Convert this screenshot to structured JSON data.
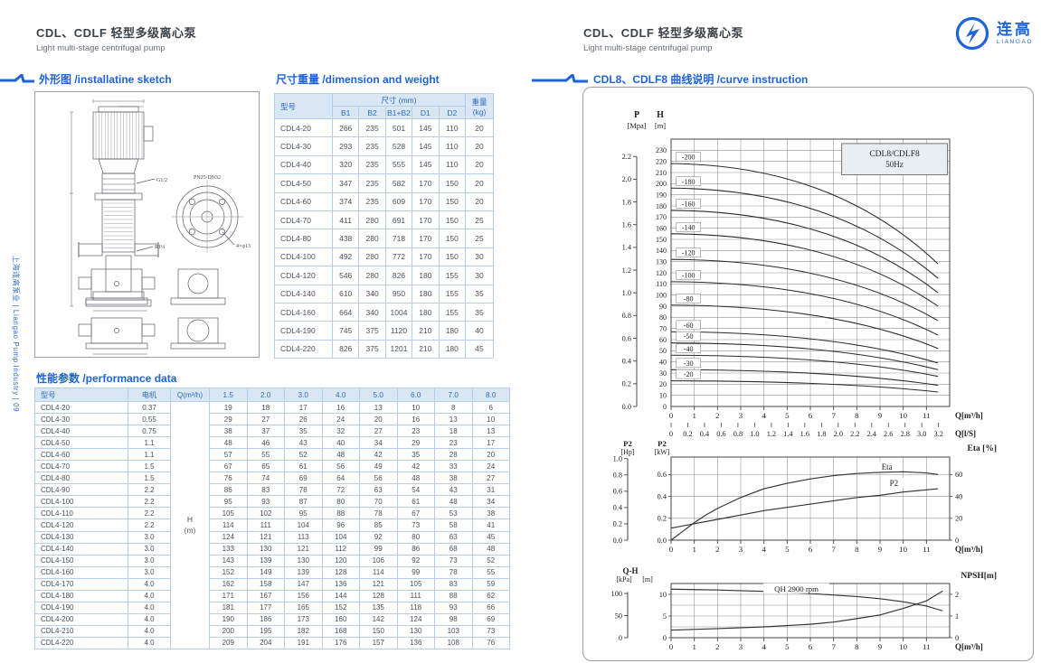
{
  "page_left": {
    "title_cn": "CDL、CDLF 轻型多级离心泵",
    "title_en": "Light multi-stage centrifugal pump",
    "section_sketch": "外形图 /installatine sketch",
    "section_dimension": "尺寸重量 /dimension and weight",
    "section_performance": "性能参数 /performance data",
    "sidebar_text": "上海连高泵业 | Liangao Pump Industry | 09",
    "sketch_labels": {
      "thread": "G1/2",
      "port": "R1¼",
      "flange": "PN25/DN32",
      "bolts": "4×φ13"
    },
    "dimension_table": {
      "col_model": "型号",
      "col_size": "尺寸 (mm)",
      "col_weight": "重量",
      "col_weight_unit": "(kg)",
      "size_cols": [
        "B1",
        "B2",
        "B1+B2",
        "D1",
        "D2"
      ],
      "rows": [
        [
          "CDL4-20",
          "266",
          "235",
          "501",
          "145",
          "110",
          "20"
        ],
        [
          "CDL4-30",
          "293",
          "235",
          "528",
          "145",
          "110",
          "20"
        ],
        [
          "CDL4-40",
          "320",
          "235",
          "555",
          "145",
          "110",
          "20"
        ],
        [
          "CDL4-50",
          "347",
          "235",
          "582",
          "170",
          "150",
          "20"
        ],
        [
          "CDL4-60",
          "374",
          "235",
          "609",
          "170",
          "150",
          "20"
        ],
        [
          "CDL4-70",
          "411",
          "280",
          "691",
          "170",
          "150",
          "25"
        ],
        [
          "CDL4-80",
          "438",
          "280",
          "718",
          "170",
          "150",
          "25"
        ],
        [
          "CDL4-100",
          "492",
          "280",
          "772",
          "170",
          "150",
          "30"
        ],
        [
          "CDL4-120",
          "546",
          "280",
          "826",
          "180",
          "155",
          "30"
        ],
        [
          "CDL4-140",
          "610",
          "340",
          "950",
          "180",
          "155",
          "35"
        ],
        [
          "CDL4-160",
          "664",
          "340",
          "1004",
          "180",
          "155",
          "35"
        ],
        [
          "CDL4-190",
          "745",
          "375",
          "1120",
          "210",
          "180",
          "40"
        ],
        [
          "CDL4-220",
          "826",
          "375",
          "1201",
          "210",
          "180",
          "45"
        ]
      ]
    },
    "performance_table": {
      "headers": [
        "型号",
        "电机",
        "Q(m³/h)",
        "1.5",
        "2.0",
        "3.0",
        "4.0",
        "5.0",
        "6.0",
        "7.0",
        "8.0"
      ],
      "h_col": {
        "top": "H",
        "bottom": "(m)"
      },
      "rows": [
        [
          "CDL4-20",
          "0.37",
          "19",
          "18",
          "17",
          "16",
          "13",
          "10",
          "8",
          "6"
        ],
        [
          "CDL4-30",
          "0.55",
          "29",
          "27",
          "26",
          "24",
          "20",
          "16",
          "13",
          "10"
        ],
        [
          "CDL4-40",
          "0.75",
          "38",
          "37",
          "35",
          "32",
          "27",
          "23",
          "18",
          "13"
        ],
        [
          "CDL4-50",
          "1.1",
          "48",
          "46",
          "43",
          "40",
          "34",
          "29",
          "23",
          "17"
        ],
        [
          "CDL4-60",
          "1.1",
          "57",
          "55",
          "52",
          "48",
          "42",
          "35",
          "28",
          "20"
        ],
        [
          "CDL4-70",
          "1.5",
          "67",
          "65",
          "61",
          "56",
          "49",
          "42",
          "33",
          "24"
        ],
        [
          "CDL4-80",
          "1.5",
          "76",
          "74",
          "69",
          "64",
          "56",
          "48",
          "38",
          "27"
        ],
        [
          "CDL4-90",
          "2.2",
          "86",
          "83",
          "78",
          "72",
          "63",
          "54",
          "43",
          "31"
        ],
        [
          "CDL4-100",
          "2.2",
          "95",
          "93",
          "87",
          "80",
          "70",
          "61",
          "48",
          "34"
        ],
        [
          "CDL4-110",
          "2.2",
          "105",
          "102",
          "95",
          "88",
          "78",
          "67",
          "53",
          "38"
        ],
        [
          "CDL4-120",
          "2.2",
          "114",
          "111",
          "104",
          "96",
          "85",
          "73",
          "58",
          "41"
        ],
        [
          "CDL4-130",
          "3.0",
          "124",
          "121",
          "113",
          "104",
          "92",
          "80",
          "63",
          "45"
        ],
        [
          "CDL4-140",
          "3.0",
          "133",
          "130",
          "121",
          "112",
          "99",
          "86",
          "68",
          "48"
        ],
        [
          "CDL4-150",
          "3.0",
          "143",
          "139",
          "130",
          "120",
          "106",
          "92",
          "73",
          "52"
        ],
        [
          "CDL4-160",
          "3.0",
          "152",
          "149",
          "139",
          "128",
          "114",
          "99",
          "78",
          "55"
        ],
        [
          "CDL4-170",
          "4.0",
          "162",
          "158",
          "147",
          "136",
          "121",
          "105",
          "83",
          "59"
        ],
        [
          "CDL4-180",
          "4.0",
          "171",
          "167",
          "156",
          "144",
          "128",
          "111",
          "88",
          "62"
        ],
        [
          "CDL4-190",
          "4.0",
          "181",
          "177",
          "165",
          "152",
          "135",
          "118",
          "93",
          "66"
        ],
        [
          "CDL4-200",
          "4.0",
          "190",
          "186",
          "173",
          "160",
          "142",
          "124",
          "98",
          "69"
        ],
        [
          "CDL4-210",
          "4.0",
          "200",
          "195",
          "182",
          "168",
          "150",
          "130",
          "103",
          "73"
        ],
        [
          "CDL4-220",
          "4.0",
          "209",
          "204",
          "191",
          "176",
          "157",
          "136",
          "108",
          "76"
        ]
      ]
    }
  },
  "page_right": {
    "title_cn": "CDL、CDLF 轻型多级离心泵",
    "title_en": "Light multi-stage centrifugal pump",
    "logo_cn": "连高",
    "logo_en": "LIANGAO",
    "section_curve": "CDL8、CDLF8 曲线说明 /curve instruction"
  },
  "colors": {
    "accent_blue": "#1d63d9",
    "table_header_bg": "#d9e6f4",
    "table_header_text": "#2e6cc6",
    "table_border": "#b5cfe9",
    "chart_line": "#2a2a2a"
  },
  "chart_data": [
    {
      "type": "line",
      "name": "head-flow-curves",
      "title_line1": "CDL8/CDLF8",
      "title_line2": "50Hz",
      "y_pressure": {
        "label": "P",
        "unit": "[Mpa]",
        "ticks": [
          2.2,
          2.0,
          1.8,
          1.6,
          1.4,
          1.2,
          1.0,
          0.8,
          0.6,
          0.4,
          0.2,
          0.0
        ],
        "m_per_mpa": 102
      },
      "y_head": {
        "label": "H",
        "unit": "[m]",
        "min": 0,
        "max": 240,
        "tick_min": 0,
        "tick_max": 230,
        "tick_step": 10
      },
      "x": {
        "min": 0,
        "max": 12,
        "ticks": [
          0,
          1,
          2,
          3,
          4,
          5,
          6,
          7,
          8,
          9,
          10,
          11
        ],
        "label": "Q[m³/h]"
      },
      "x_ls": {
        "ticks": [
          0,
          0.2,
          0.4,
          0.6,
          0.8,
          1.0,
          1.2,
          1.4,
          1.6,
          1.8,
          2.0,
          2.2,
          2.4,
          2.6,
          2.8,
          3.0,
          3.2
        ],
        "label": "Q[l/S]",
        "m3h_per_ls": 3.6
      },
      "q_end": 11.5,
      "curves": [
        {
          "label": "-200",
          "h_start": 218,
          "h_end": 128
        },
        {
          "label": "-180",
          "h_start": 196,
          "h_end": 115
        },
        {
          "label": "-160",
          "h_start": 176,
          "h_end": 102
        },
        {
          "label": "-140",
          "h_start": 155,
          "h_end": 90
        },
        {
          "label": "-120",
          "h_start": 132,
          "h_end": 77
        },
        {
          "label": "-100",
          "h_start": 112,
          "h_end": 64
        },
        {
          "label": "-80",
          "h_start": 91,
          "h_end": 52
        },
        {
          "label": "-60",
          "h_start": 67,
          "h_end": 39
        },
        {
          "label": "-50",
          "h_start": 57,
          "h_end": 33
        },
        {
          "label": "-40",
          "h_start": 46,
          "h_end": 27
        },
        {
          "label": "-30",
          "h_start": 33,
          "h_end": 19
        },
        {
          "label": "-20",
          "h_start": 23,
          "h_end": 13
        }
      ]
    },
    {
      "type": "line",
      "name": "power-efficiency",
      "y_hp": {
        "label": "P2",
        "unit": "[Hp]",
        "ticks": [
          1.0,
          0.8,
          0.6,
          0.4,
          0.2,
          0.0
        ],
        "kw_per_hp": 0.7457
      },
      "y_kw": {
        "label": "P2",
        "unit": "[kW]",
        "ticks": [
          0.6,
          0.4,
          0.2,
          0.0
        ],
        "max": 0.76
      },
      "y_eta": {
        "label": "Eta [%]",
        "ticks": [
          60,
          40,
          20,
          0
        ],
        "max": 76
      },
      "x": {
        "min": 0,
        "max": 12,
        "ticks": [
          0,
          1,
          2,
          3,
          4,
          5,
          6,
          7,
          8,
          9,
          10,
          11
        ],
        "label": "Q[m³/h]"
      },
      "series": [
        {
          "name": "Eta",
          "axis": "eta",
          "label_at": [
            9.3,
            67
          ],
          "points": [
            [
              0,
              0
            ],
            [
              0.5,
              8
            ],
            [
              1,
              16
            ],
            [
              1.5,
              23
            ],
            [
              2,
              29
            ],
            [
              3,
              39
            ],
            [
              4,
              47
            ],
            [
              5,
              52
            ],
            [
              6,
              56
            ],
            [
              7,
              59
            ],
            [
              8,
              61
            ],
            [
              9,
              62
            ],
            [
              10,
              62.5
            ],
            [
              11,
              61.5
            ],
            [
              11.5,
              60
            ]
          ]
        },
        {
          "name": "P2",
          "axis": "kw",
          "label_at": [
            9.6,
            0.52
          ],
          "points": [
            [
              0,
              0.11
            ],
            [
              1,
              0.15
            ],
            [
              2,
              0.19
            ],
            [
              3,
              0.23
            ],
            [
              4,
              0.27
            ],
            [
              5,
              0.3
            ],
            [
              6,
              0.33
            ],
            [
              7,
              0.36
            ],
            [
              8,
              0.39
            ],
            [
              9,
              0.41
            ],
            [
              10,
              0.44
            ],
            [
              11,
              0.46
            ],
            [
              11.5,
              0.47
            ]
          ]
        }
      ]
    },
    {
      "type": "line",
      "name": "qh-npsh",
      "y_qh": {
        "label": "Q-H",
        "unit_kpa": "[kPa]",
        "unit_m": "[m]",
        "kpa_ticks": [
          100,
          50,
          0
        ],
        "m_ticks": [
          10,
          5,
          0
        ],
        "m_max": 12.5,
        "kpa_per_m": 9.8
      },
      "y_npsh": {
        "label": "NPSH[m]",
        "ticks": [
          2,
          1,
          0
        ],
        "max": 2.5
      },
      "x": {
        "min": 0,
        "max": 12,
        "ticks": [
          0,
          1,
          2,
          3,
          4,
          5,
          6,
          7,
          8,
          9,
          10,
          11
        ],
        "label": "Q[m³/h]"
      },
      "series": [
        {
          "name": "QH  2900 rpm",
          "axis": "m",
          "label_at": [
            5.4,
            11.3
          ],
          "points": [
            [
              0,
              11.2
            ],
            [
              2,
              11.0
            ],
            [
              4,
              10.7
            ],
            [
              6,
              10.2
            ],
            [
              8,
              9.5
            ],
            [
              9,
              9.0
            ],
            [
              10,
              8.3
            ],
            [
              11,
              7.3
            ],
            [
              11.7,
              6.2
            ]
          ]
        },
        {
          "name": "NPSH",
          "axis": "npsh",
          "label_at": [
            4.6,
            4.2
          ],
          "points": [
            [
              0,
              0.35
            ],
            [
              2,
              0.42
            ],
            [
              4,
              0.5
            ],
            [
              6,
              0.62
            ],
            [
              7,
              0.72
            ],
            [
              8,
              0.88
            ],
            [
              9,
              1.05
            ],
            [
              10,
              1.35
            ],
            [
              11,
              1.7
            ],
            [
              11.7,
              2.15
            ]
          ]
        }
      ]
    }
  ]
}
